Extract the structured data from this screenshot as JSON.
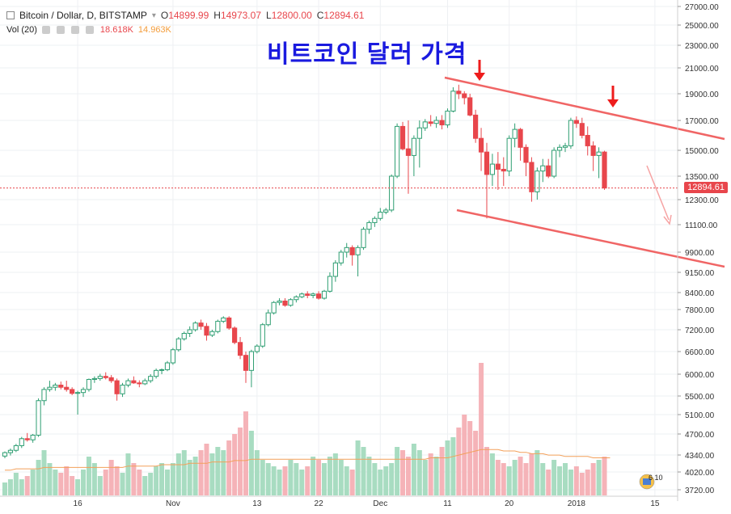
{
  "header": {
    "symbol": "Bitcoin / Dollar, D, BITSTAMP",
    "open_label": "O",
    "open": "14899.99",
    "high_label": "H",
    "high": "14973.07",
    "low_label": "L",
    "low": "12800.00",
    "close_label": "C",
    "close": "12894.61",
    "vol_label": "Vol (20)",
    "vol1": "18.618K",
    "vol2": "14.963K"
  },
  "annotation_title": "비트코인 달러 가격",
  "last_price_tag": "12894.61",
  "badge_text": "6 10",
  "colors": {
    "up": "#2e9e72",
    "up_fill": "#ffffff",
    "down": "#e8464c",
    "vol_up": "#a8dcc1",
    "vol_down": "#f5b3b8",
    "trendline": "#f06565",
    "ma": "#f3a05a",
    "title": "#1a1adf"
  },
  "chart_data": {
    "type": "candlestick",
    "y_ticks": [
      27000,
      25000,
      23000,
      21000,
      19000,
      17000,
      15000,
      13500,
      12300,
      11100,
      9900,
      9150,
      8400,
      7800,
      7200,
      6600,
      6000,
      5500,
      5100,
      4700,
      4340,
      4020,
      3720
    ],
    "y_tick_labels": [
      "27000.00",
      "25000.00",
      "23000.00",
      "21000.00",
      "19000.00",
      "17000.00",
      "15000.00",
      "13500.00",
      "12300.00",
      "11100.00",
      "9900.00",
      "9150.00",
      "8400.00",
      "7800.00",
      "7200.00",
      "6600.00",
      "6000.00",
      "5500.00",
      "5100.00",
      "4700.00",
      "4340.00",
      "4020.00",
      "3720.00"
    ],
    "x_labels": [
      "16",
      "Nov",
      "13",
      "22",
      "Dec",
      "11",
      "20",
      "2018",
      "15"
    ],
    "x_label_index": [
      13,
      30,
      45,
      56,
      67,
      79,
      90,
      102,
      116
    ],
    "last_price": 12894.61,
    "candles": [
      [
        4320,
        4400,
        4280,
        4380
      ],
      [
        4380,
        4450,
        4330,
        4420
      ],
      [
        4420,
        4530,
        4390,
        4500
      ],
      [
        4500,
        4650,
        4460,
        4620
      ],
      [
        4620,
        4720,
        4570,
        4600
      ],
      [
        4600,
        4700,
        4550,
        4680
      ],
      [
        4680,
        5450,
        4650,
        5400
      ],
      [
        5400,
        5700,
        5300,
        5650
      ],
      [
        5650,
        5850,
        5600,
        5700
      ],
      [
        5700,
        5800,
        5620,
        5750
      ],
      [
        5750,
        5830,
        5650,
        5700
      ],
      [
        5700,
        5850,
        5600,
        5650
      ],
      [
        5650,
        5700,
        5520,
        5560
      ],
      [
        5560,
        5620,
        5100,
        5580
      ],
      [
        5580,
        5700,
        5480,
        5650
      ],
      [
        5650,
        5900,
        5600,
        5880
      ],
      [
        5880,
        5950,
        5800,
        5900
      ],
      [
        5900,
        6010,
        5850,
        5950
      ],
      [
        5950,
        6050,
        5880,
        5920
      ],
      [
        5920,
        5980,
        5800,
        5850
      ],
      [
        5850,
        5900,
        5400,
        5550
      ],
      [
        5550,
        5800,
        5480,
        5750
      ],
      [
        5750,
        5900,
        5700,
        5850
      ],
      [
        5850,
        5950,
        5780,
        5800
      ],
      [
        5800,
        5860,
        5700,
        5780
      ],
      [
        5780,
        5900,
        5750,
        5850
      ],
      [
        5850,
        6000,
        5800,
        5950
      ],
      [
        5950,
        6150,
        5900,
        6100
      ],
      [
        6100,
        6150,
        6000,
        6120
      ],
      [
        6120,
        6350,
        6080,
        6300
      ],
      [
        6300,
        6700,
        6250,
        6650
      ],
      [
        6650,
        7000,
        6600,
        6950
      ],
      [
        6950,
        7150,
        6900,
        7100
      ],
      [
        7100,
        7300,
        7000,
        7200
      ],
      [
        7200,
        7450,
        7150,
        7400
      ],
      [
        7400,
        7500,
        7200,
        7300
      ],
      [
        7300,
        7400,
        6900,
        7050
      ],
      [
        7050,
        7200,
        7000,
        7150
      ],
      [
        7150,
        7500,
        7100,
        7450
      ],
      [
        7450,
        7600,
        7400,
        7550
      ],
      [
        7550,
        7600,
        7200,
        7250
      ],
      [
        7250,
        7300,
        6800,
        6850
      ],
      [
        6850,
        7000,
        6400,
        6500
      ],
      [
        6500,
        6600,
        5800,
        6100
      ],
      [
        6100,
        6650,
        5700,
        6600
      ],
      [
        6600,
        6800,
        6550,
        6750
      ],
      [
        6750,
        7400,
        6700,
        7350
      ],
      [
        7350,
        7800,
        7300,
        7700
      ],
      [
        7700,
        8100,
        7650,
        8050
      ],
      [
        8050,
        8200,
        7950,
        8100
      ],
      [
        8100,
        8200,
        7900,
        7950
      ],
      [
        7950,
        8200,
        7900,
        8150
      ],
      [
        8150,
        8300,
        8050,
        8250
      ],
      [
        8250,
        8400,
        8200,
        8350
      ],
      [
        8350,
        8450,
        8200,
        8300
      ],
      [
        8300,
        8400,
        8200,
        8350
      ],
      [
        8350,
        8450,
        8150,
        8200
      ],
      [
        8200,
        8500,
        8150,
        8450
      ],
      [
        8450,
        9150,
        8400,
        9000
      ],
      [
        9000,
        9600,
        8800,
        9500
      ],
      [
        9500,
        10000,
        9400,
        9900
      ],
      [
        9900,
        10300,
        9700,
        10100
      ],
      [
        10100,
        10200,
        9400,
        9800
      ],
      [
        9800,
        10200,
        9000,
        10100
      ],
      [
        10100,
        11000,
        10000,
        10900
      ],
      [
        10900,
        11300,
        10700,
        11200
      ],
      [
        11200,
        11500,
        11000,
        11400
      ],
      [
        11400,
        11900,
        11300,
        11700
      ],
      [
        11700,
        11900,
        11600,
        11800
      ],
      [
        11800,
        13600,
        11700,
        13500
      ],
      [
        13500,
        16800,
        13400,
        16600
      ],
      [
        16600,
        16900,
        15000,
        15100
      ],
      [
        15100,
        17000,
        12600,
        14700
      ],
      [
        14700,
        16000,
        13500,
        15800
      ],
      [
        15800,
        17000,
        14000,
        16500
      ],
      [
        16500,
        17100,
        16300,
        16900
      ],
      [
        16900,
        17400,
        16600,
        16800
      ],
      [
        16800,
        17300,
        16500,
        17000
      ],
      [
        17000,
        17400,
        16400,
        16700
      ],
      [
        16700,
        17900,
        16500,
        17700
      ],
      [
        17700,
        19500,
        17600,
        19200
      ],
      [
        19200,
        19700,
        18600,
        19000
      ],
      [
        19000,
        19200,
        18200,
        18700
      ],
      [
        18700,
        19000,
        17300,
        17400
      ],
      [
        17400,
        17800,
        15500,
        15800
      ],
      [
        15800,
        16500,
        13800,
        14900
      ],
      [
        14900,
        15500,
        11400,
        13600
      ],
      [
        13600,
        14800,
        13000,
        14200
      ],
      [
        14200,
        14900,
        12800,
        13900
      ],
      [
        13900,
        14600,
        13000,
        13800
      ],
      [
        13800,
        16000,
        13500,
        15800
      ],
      [
        15800,
        16800,
        15200,
        16400
      ],
      [
        16400,
        16500,
        14400,
        15200
      ],
      [
        15200,
        15400,
        13500,
        14300
      ],
      [
        14300,
        14600,
        12200,
        12700
      ],
      [
        12700,
        14000,
        12300,
        13800
      ],
      [
        13800,
        14500,
        13200,
        14100
      ],
      [
        14100,
        14500,
        13400,
        13500
      ],
      [
        13500,
        15200,
        13400,
        15000
      ],
      [
        15000,
        15400,
        14600,
        15200
      ],
      [
        15200,
        15500,
        14900,
        15300
      ],
      [
        15300,
        17200,
        15100,
        17000
      ],
      [
        17000,
        17300,
        16500,
        16800
      ],
      [
        16800,
        17200,
        15800,
        16000
      ],
      [
        16000,
        16600,
        14700,
        15300
      ],
      [
        15300,
        15600,
        13800,
        14700
      ],
      [
        14700,
        15200,
        13400,
        14900
      ],
      [
        14900,
        14973,
        12800,
        12895
      ]
    ],
    "volumes": [
      8,
      10,
      14,
      10,
      12,
      16,
      22,
      28,
      20,
      16,
      14,
      18,
      12,
      10,
      16,
      24,
      20,
      12,
      16,
      22,
      18,
      14,
      26,
      20,
      16,
      12,
      14,
      18,
      20,
      16,
      20,
      26,
      28,
      22,
      24,
      28,
      32,
      26,
      30,
      28,
      34,
      38,
      42,
      52,
      40,
      28,
      22,
      20,
      18,
      16,
      18,
      22,
      20,
      16,
      18,
      24,
      22,
      20,
      24,
      26,
      22,
      18,
      16,
      34,
      30,
      24,
      20,
      16,
      18,
      20,
      30,
      28,
      24,
      32,
      28,
      22,
      26,
      24,
      30,
      34,
      36,
      42,
      50,
      46,
      40,
      82,
      30,
      26,
      22,
      20,
      18,
      22,
      24,
      20,
      26,
      28,
      20,
      16,
      22,
      18,
      20,
      16,
      18,
      14,
      16,
      20,
      22,
      24,
      28
    ],
    "volume_ma": [
      16,
      16,
      17,
      17,
      17,
      17,
      17,
      18,
      18,
      18,
      18,
      18,
      18,
      18,
      18,
      18,
      18,
      18,
      18,
      18,
      18,
      18,
      19,
      19,
      19,
      19,
      19,
      19,
      20,
      20,
      20,
      20,
      20,
      21,
      21,
      21,
      21,
      22,
      22,
      22,
      22,
      23,
      23,
      23,
      24,
      24,
      24,
      24,
      24,
      24,
      24,
      24,
      24,
      24,
      24,
      24,
      24,
      24,
      24,
      24,
      24,
      24,
      24,
      24,
      24,
      24,
      24,
      24,
      24,
      24,
      24,
      24,
      24,
      24,
      24,
      24,
      25,
      25,
      25,
      25,
      26,
      27,
      28,
      29,
      30,
      31,
      31,
      31,
      31,
      30,
      30,
      30,
      29,
      29,
      28,
      28,
      28,
      27,
      27,
      27,
      26,
      26,
      26,
      26,
      26,
      25,
      25,
      25,
      25
    ]
  }
}
